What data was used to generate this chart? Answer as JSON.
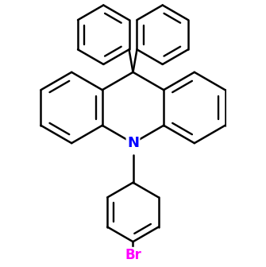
{
  "bg_color": "#ffffff",
  "bond_color": "#000000",
  "N_color": "#0000ff",
  "Br_color": "#ff00ff",
  "line_width": 1.8,
  "figsize": [
    3.35,
    3.36
  ],
  "dpi": 100,
  "ring_r": 0.36,
  "ph_r": 0.3
}
